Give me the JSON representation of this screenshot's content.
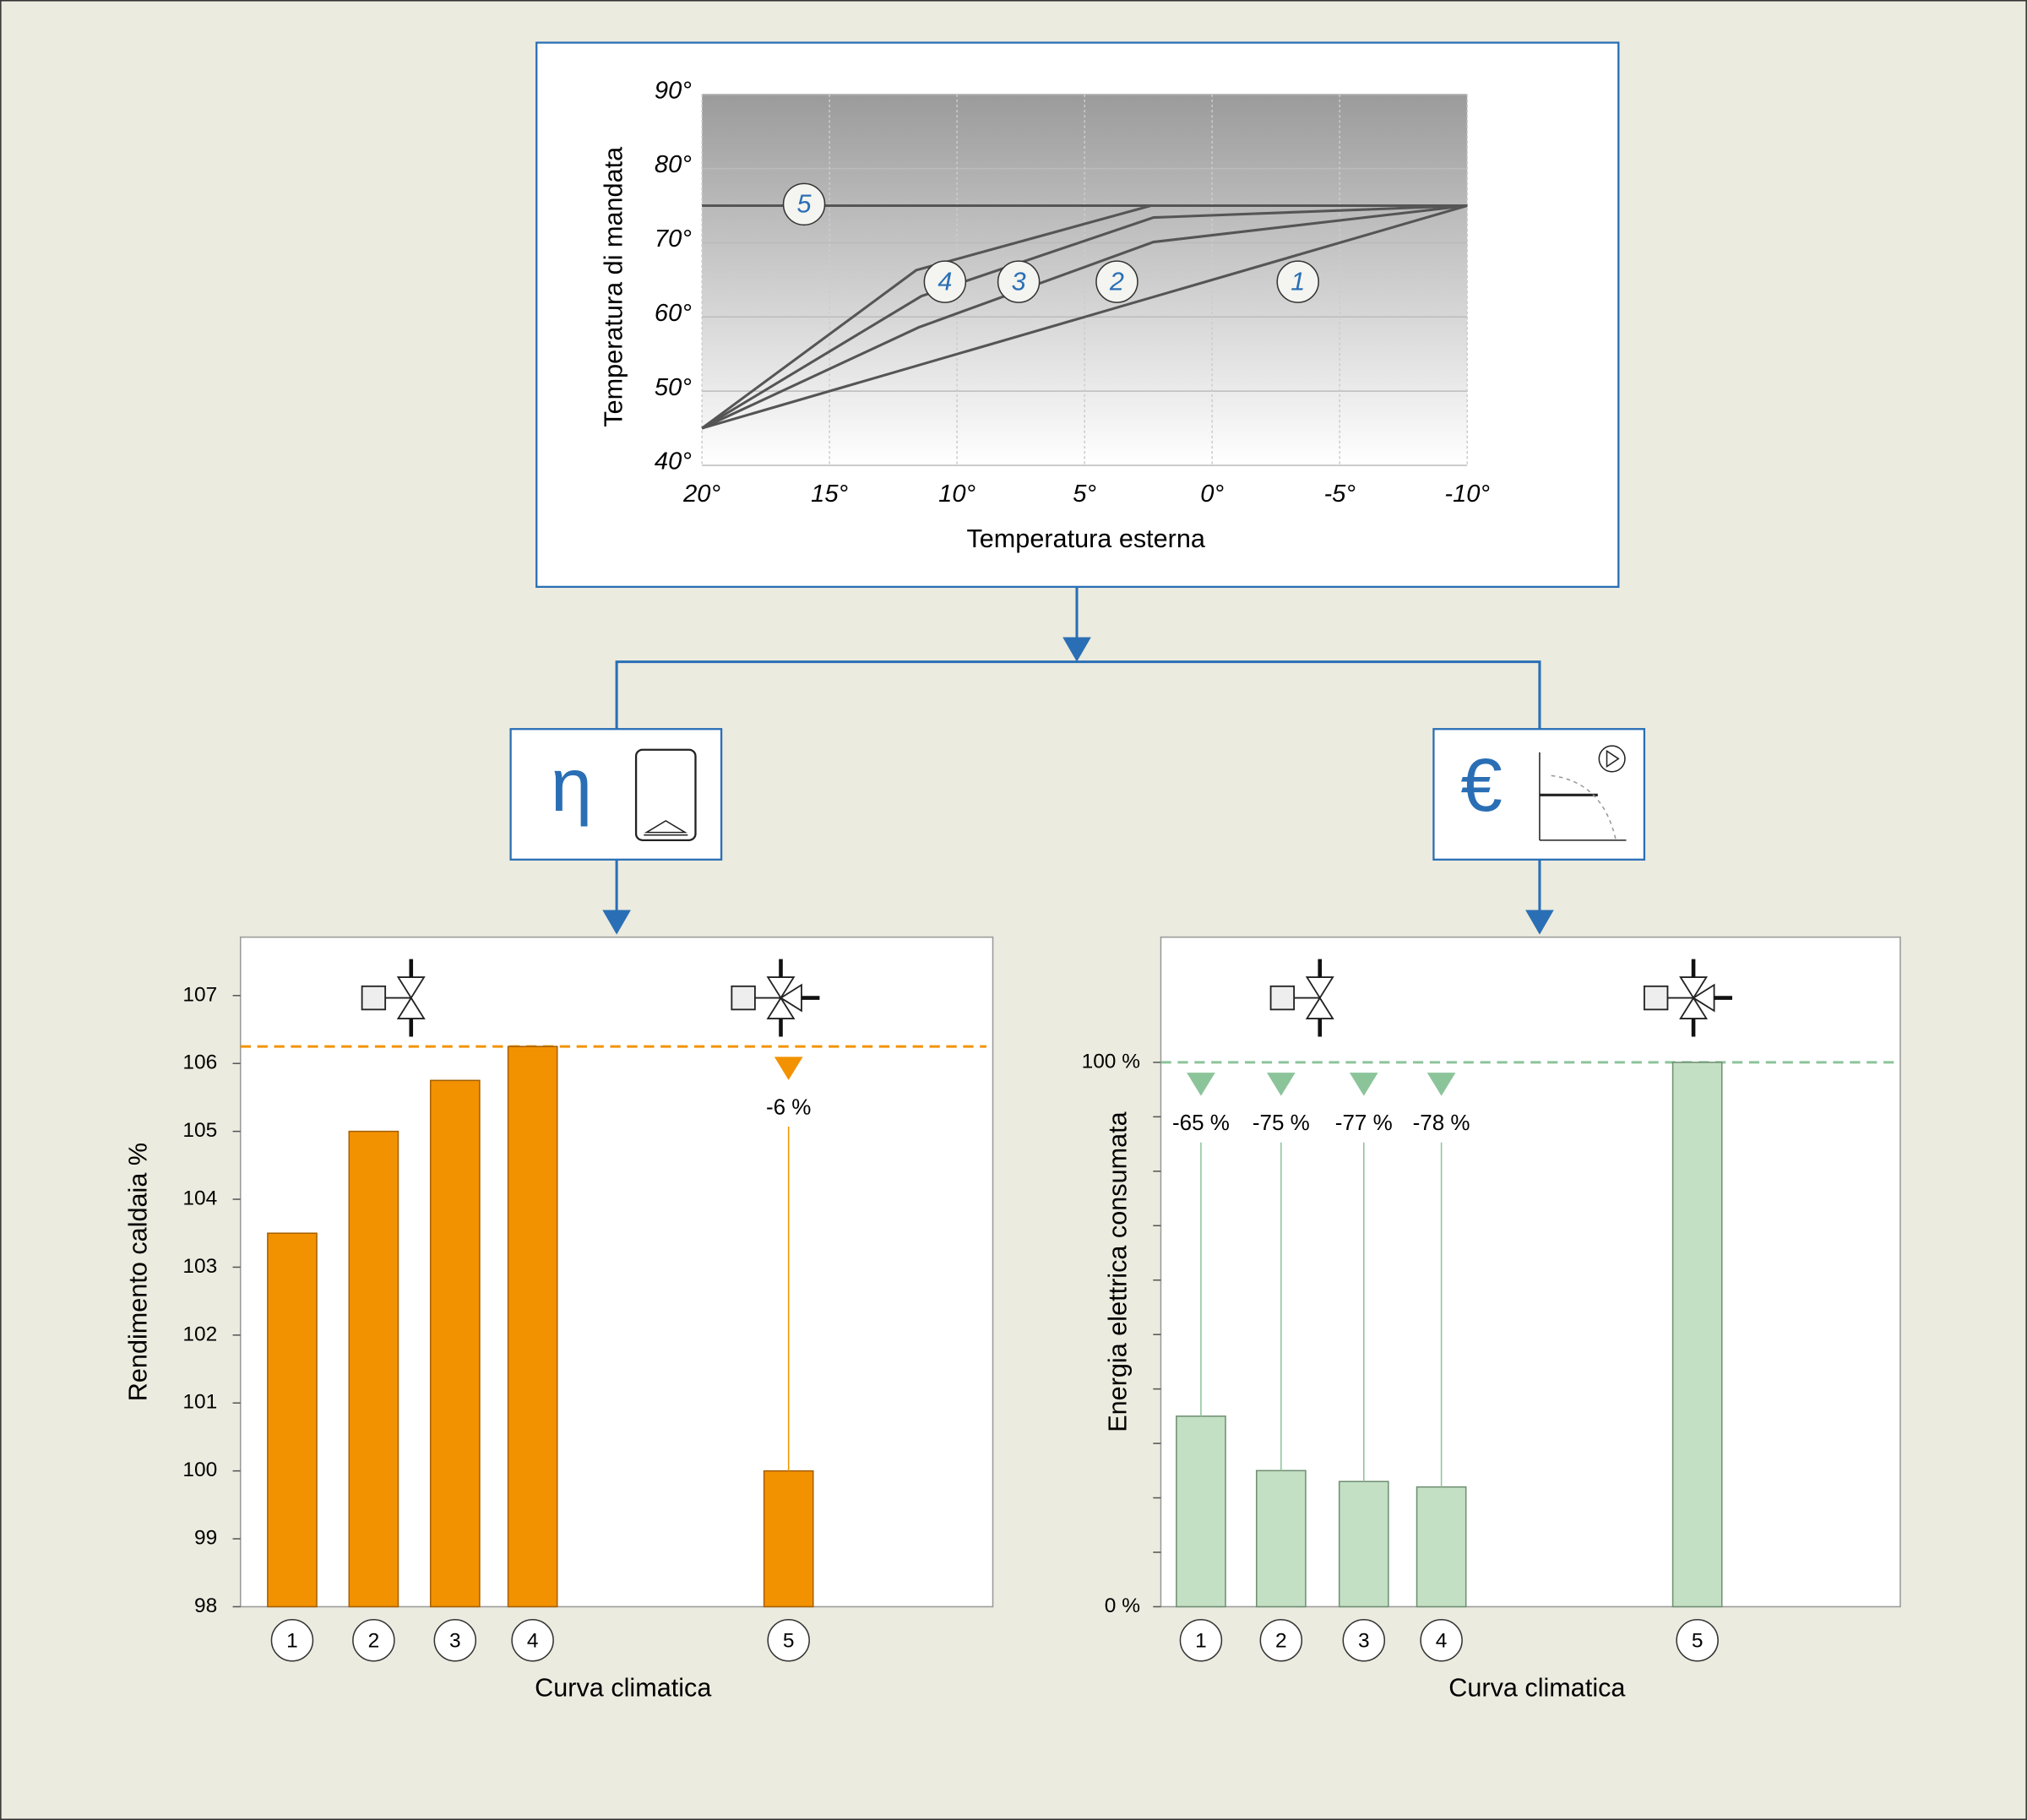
{
  "chart_data": [
    {
      "type": "line",
      "xlabel": "Temperatura esterna",
      "ylabel": "Temperatura di mandata",
      "xlim": [
        20,
        -10
      ],
      "ylim": [
        40,
        90
      ],
      "xticks": [
        {
          "value": 20,
          "label": "20°"
        },
        {
          "value": 15,
          "label": "15°"
        },
        {
          "value": 10,
          "label": "10°"
        },
        {
          "value": 5,
          "label": "5°"
        },
        {
          "value": 0,
          "label": "0°"
        },
        {
          "value": -5,
          "label": "-5°"
        },
        {
          "value": -10,
          "label": "-10°"
        }
      ],
      "yticks": [
        {
          "value": 40,
          "label": "40°"
        },
        {
          "value": 50,
          "label": "50°"
        },
        {
          "value": 60,
          "label": "60°"
        },
        {
          "value": 70,
          "label": "70°"
        },
        {
          "value": 80,
          "label": "80°"
        },
        {
          "value": 90,
          "label": "90°"
        }
      ],
      "grid": true,
      "series": [
        {
          "name": "1",
          "color": "#555555",
          "x": [
            20,
            -10
          ],
          "values": [
            45,
            75
          ]
        },
        {
          "name": "2",
          "color": "#555555",
          "x": [
            20,
            11.5,
            2.3,
            -10
          ],
          "values": [
            45,
            58.6,
            70.1,
            75
          ]
        },
        {
          "name": "3",
          "color": "#555555",
          "x": [
            20,
            11.4,
            2.3,
            -10
          ],
          "values": [
            45,
            62.8,
            73.4,
            75
          ]
        },
        {
          "name": "4",
          "color": "#555555",
          "x": [
            20,
            11.6,
            2.4,
            -10
          ],
          "values": [
            45,
            66.3,
            75,
            75
          ]
        },
        {
          "name": "5",
          "color": "#555555",
          "x": [
            20,
            -10
          ],
          "values": [
            75,
            75
          ]
        }
      ]
    },
    {
      "type": "bar",
      "ylabel": "Rendimento caldaia %",
      "xlabel": "Curva climatica",
      "categories": [
        "1",
        "2",
        "3",
        "4",
        "5"
      ],
      "values": [
        103.5,
        105,
        105.75,
        106.25,
        100
      ],
      "color": "#f39200",
      "ylim": [
        98,
        107.86
      ],
      "yticks": [
        98,
        99,
        100,
        101,
        102,
        103,
        104,
        105,
        106,
        107
      ],
      "reference": 106.25,
      "annotations": [
        null,
        null,
        null,
        null,
        "-6 %"
      ]
    },
    {
      "type": "bar",
      "ylabel": "Energia elettrica consumata",
      "xlabel": "Curva climatica",
      "categories": [
        "1",
        "2",
        "3",
        "4",
        "5"
      ],
      "values": [
        35,
        25,
        23,
        22,
        100
      ],
      "color": "#c3dfc4",
      "ylim": [
        0,
        123
      ],
      "yticks": [
        {
          "value": 0,
          "label": "0 %"
        },
        {
          "value": 100,
          "label": "100 %"
        }
      ],
      "minor_yticks": [
        10,
        20,
        30,
        40,
        50,
        60,
        70,
        80,
        90
      ],
      "reference": 100,
      "annotations": [
        "-65 %",
        "-75 %",
        "-77 %",
        "-78 %",
        null
      ]
    }
  ],
  "icons": {
    "efficiency": "η",
    "cost": "€"
  }
}
